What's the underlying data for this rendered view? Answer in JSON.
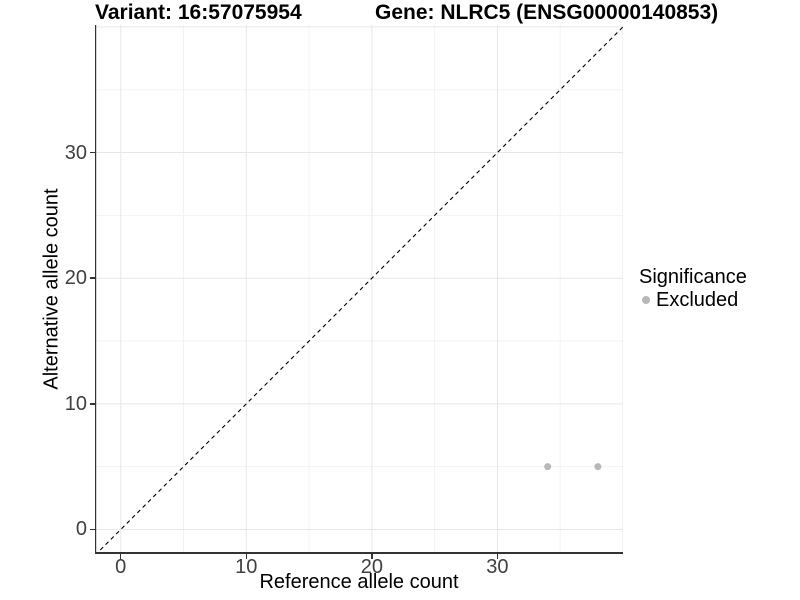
{
  "titles": {
    "variant": "Variant: 16:57075954",
    "gene": "Gene: NLRC5 (ENSG00000140853)"
  },
  "chart_data": {
    "type": "scatter",
    "title": "Variant: 16:57075954  Gene: NLRC5 (ENSG00000140853)",
    "xlabel": "Reference allele count",
    "ylabel": "Alternative allele count",
    "xlim": [
      -2.05,
      40.0
    ],
    "ylim": [
      -1.95,
      40.15
    ],
    "x_tick_labels": [
      0,
      10,
      20,
      30
    ],
    "y_tick_labels": [
      0,
      10,
      20,
      30
    ],
    "x_grid_major": [
      0,
      10,
      20,
      30,
      40
    ],
    "x_grid_minor": [
      5,
      15,
      25,
      35
    ],
    "y_grid_major": [
      0,
      10,
      20,
      30,
      40
    ],
    "y_grid_minor": [
      5,
      15,
      25,
      35
    ],
    "grid": true,
    "reference_line": {
      "slope": 1,
      "intercept": 0,
      "style": "dashed",
      "color": "#000000"
    },
    "series": [
      {
        "name": "Excluded",
        "color": "#b8b8b8",
        "points": [
          {
            "x": 34,
            "y": 5
          },
          {
            "x": 38,
            "y": 5
          }
        ]
      }
    ],
    "legend": {
      "title": "Significance",
      "position": "right",
      "items": [
        {
          "label": "Excluded",
          "color": "#b8b8b8"
        }
      ]
    }
  },
  "colors": {
    "background": "#ffffff",
    "grid_major": "#e7e7e7",
    "grid_minor": "#f3f3f3",
    "axis_line": "#333333",
    "tick_label": "#404040",
    "point": "#b8b8b8"
  }
}
